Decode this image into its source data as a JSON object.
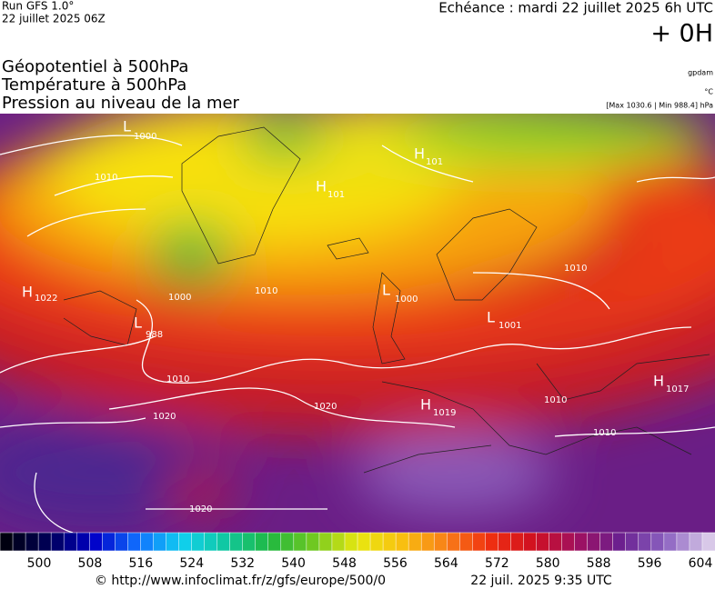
{
  "header": {
    "run": "Run GFS 1.0°",
    "run_date": "22 juillet 2025 06Z",
    "echeance": "Echéance : mardi 22 juillet 2025 6h UTC",
    "offset": "+ 0H"
  },
  "legend": {
    "lines": [
      "Géopotentiel à 500hPa",
      "Température à 500hPa",
      "Pression au niveau de la mer"
    ],
    "units": [
      "gpdam",
      "°C",
      "[Max 1030.6 | Min 988.4] hPa"
    ]
  },
  "map": {
    "centers": [
      {
        "letter": "L",
        "value": "1000"
      },
      {
        "letter": "H",
        "value": "101"
      },
      {
        "letter": "H",
        "value": "101"
      },
      {
        "letter": "H",
        "value": "1022"
      },
      {
        "letter": "L",
        "value": "988"
      },
      {
        "letter": "L",
        "value": "1000"
      },
      {
        "letter": "L",
        "value": "1001"
      },
      {
        "letter": "H",
        "value": "1019"
      },
      {
        "letter": "H",
        "value": "1017"
      }
    ],
    "isobar_labels": [
      "1010",
      "1010",
      "1010",
      "1020",
      "1020",
      "1020",
      "1010",
      "1010",
      "1010",
      "1000"
    ]
  },
  "colorbar": {
    "labels": [
      500,
      508,
      516,
      524,
      532,
      540,
      548,
      556,
      564,
      572,
      580,
      588,
      596,
      604
    ]
  },
  "footer": {
    "source": "© http://www.infoclimat.fr/z/gfs/europe/500/0",
    "generated": "22 juil. 2025  9:35 UTC"
  }
}
